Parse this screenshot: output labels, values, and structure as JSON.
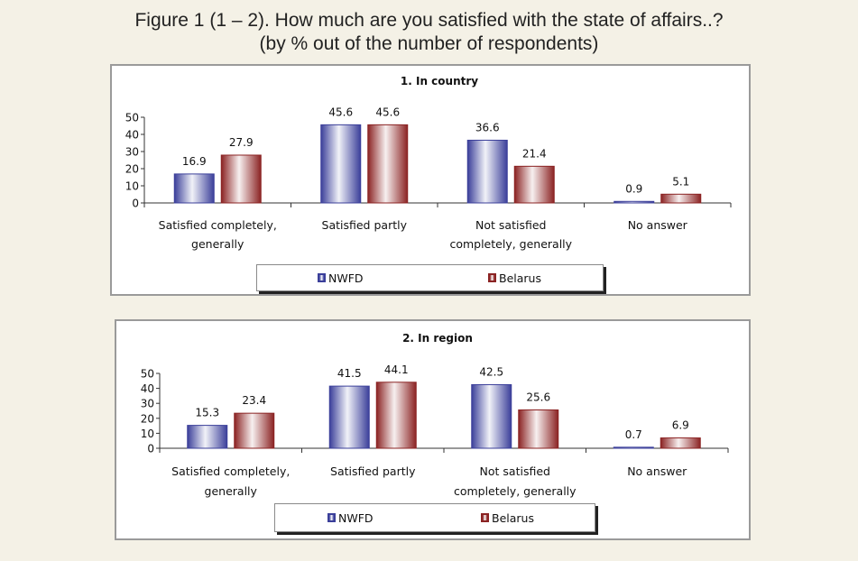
{
  "figure": {
    "title_line1": "Figure 1 (1 – 2). How much are you satisfied with the state of affairs..?",
    "title_line2": "(by % out of the number of respondents)"
  },
  "chart_data": [
    {
      "type": "bar",
      "title": "1. In country",
      "categories": [
        [
          "Satisfied completely,",
          "generally"
        ],
        [
          "Satisfied partly"
        ],
        [
          "Not satisfied",
          "completely, generally"
        ],
        [
          "No answer"
        ]
      ],
      "series": [
        {
          "name": "NWFD",
          "values": [
            16.9,
            45.6,
            36.6,
            0.9
          ],
          "color": "#3b3f9a"
        },
        {
          "name": "Belarus",
          "values": [
            27.9,
            45.6,
            21.4,
            5.1
          ],
          "color": "#8b2323"
        }
      ],
      "ylim": [
        0,
        50
      ],
      "yticks": [
        "0",
        "10",
        "20",
        "30",
        "40",
        "50"
      ],
      "legend": "bottom"
    },
    {
      "type": "bar",
      "title": "2. In region",
      "categories": [
        [
          "Satisfied completely,",
          "generally"
        ],
        [
          "Satisfied partly"
        ],
        [
          "Not satisfied",
          "completely, generally"
        ],
        [
          "No answer"
        ]
      ],
      "series": [
        {
          "name": "NWFD",
          "values": [
            15.3,
            41.5,
            42.5,
            0.7
          ],
          "color": "#3b3f9a"
        },
        {
          "name": "Belarus",
          "values": [
            23.4,
            44.1,
            25.6,
            6.9
          ],
          "color": "#8b2323"
        }
      ],
      "ylim": [
        0,
        50
      ],
      "yticks": [
        "0",
        "10",
        "20",
        "30",
        "40",
        "50"
      ],
      "legend": "bottom"
    }
  ]
}
